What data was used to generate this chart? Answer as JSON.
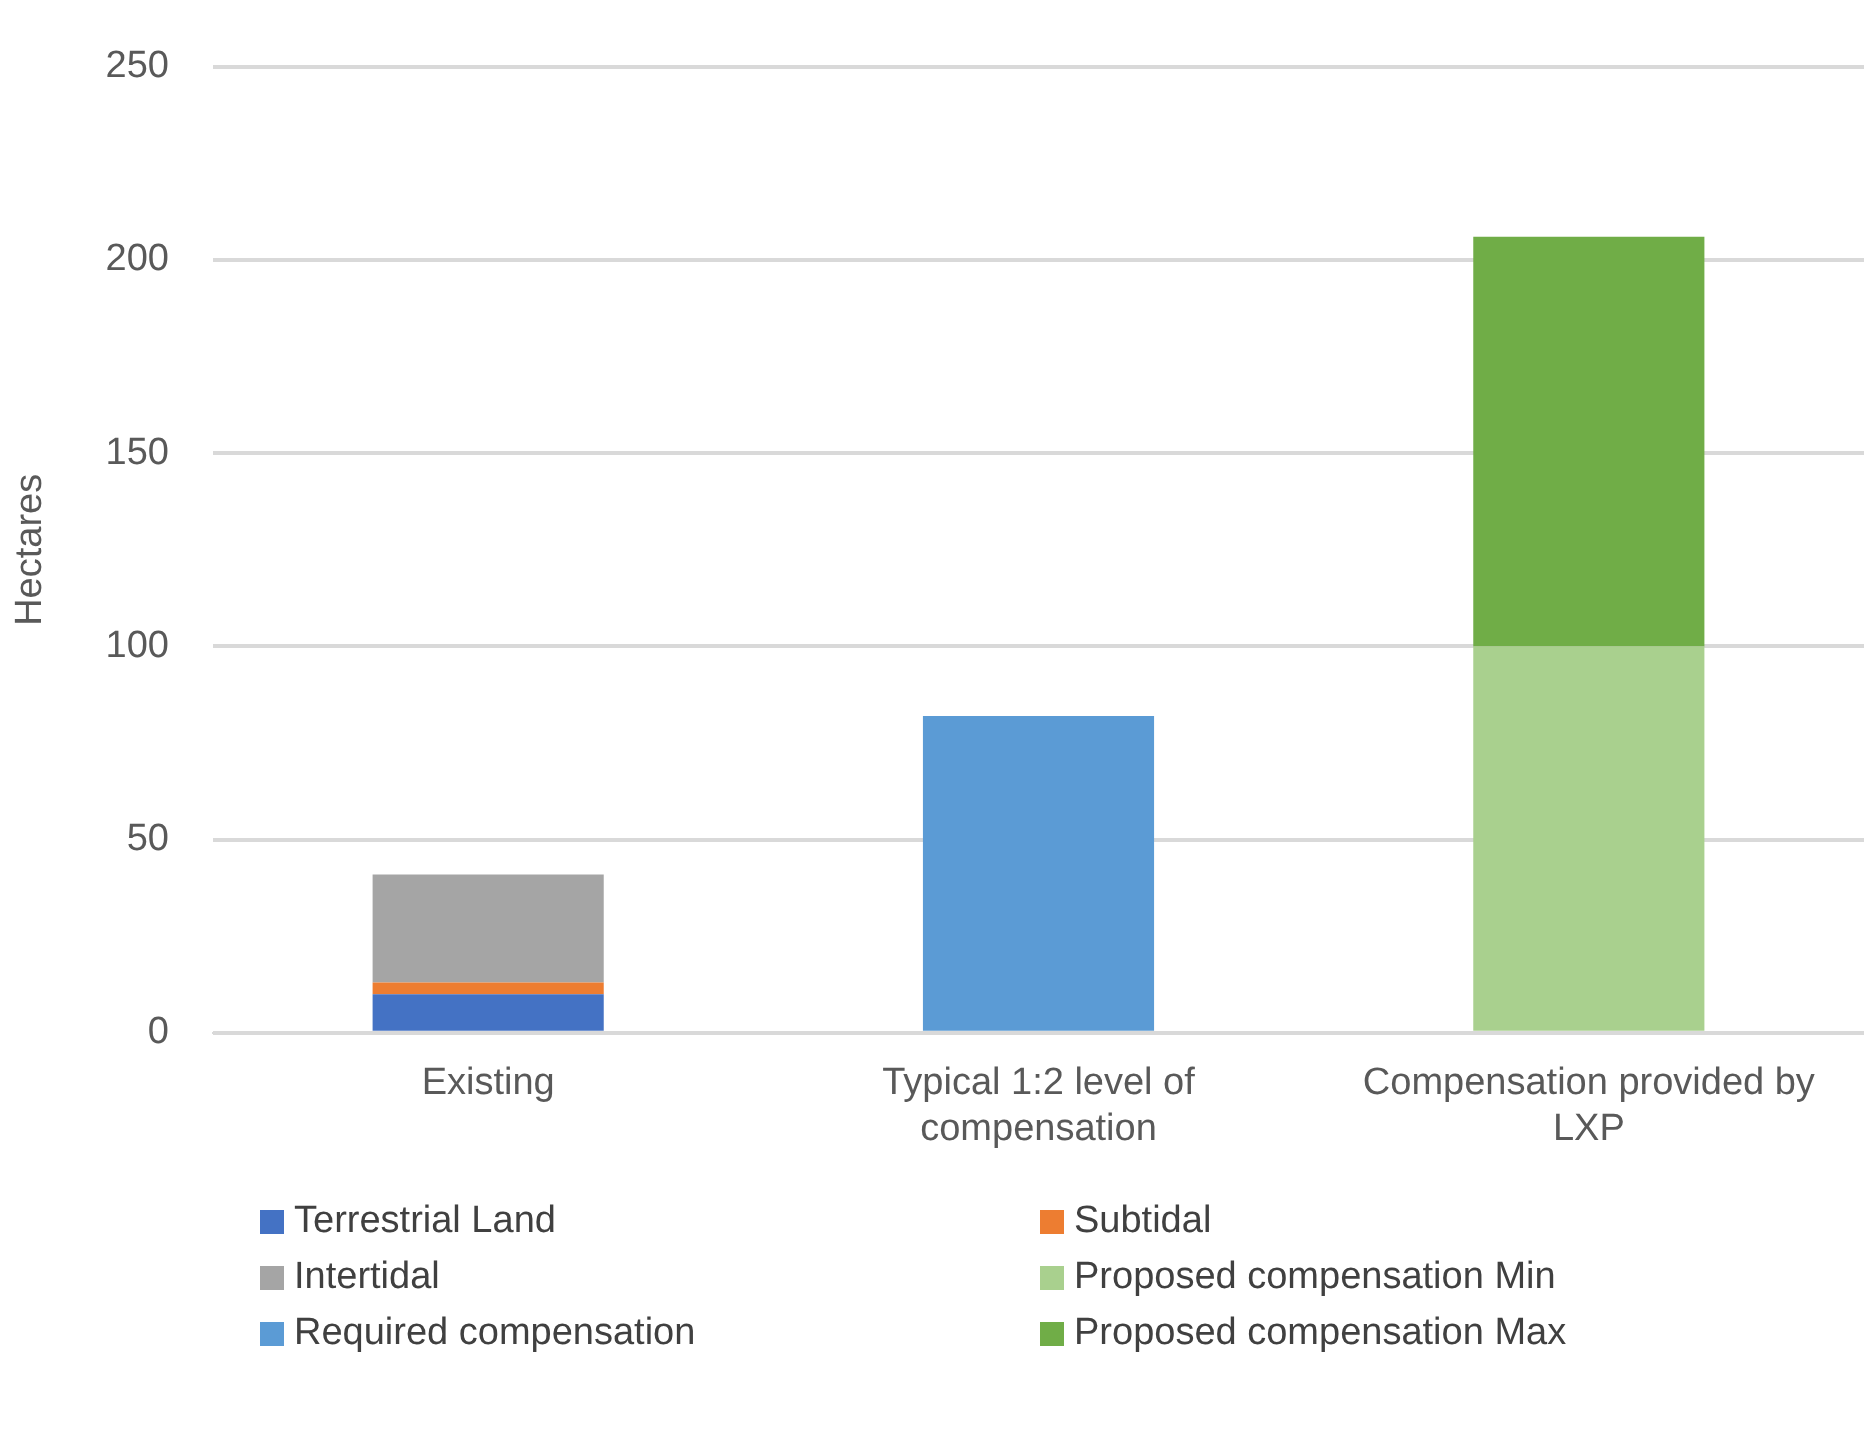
{
  "chart_data": {
    "type": "bar",
    "stacked": true,
    "ylabel": "Hectares",
    "categories": [
      "Existing",
      "Typical 1:2 level of compensation",
      "Compensation provided by LXP"
    ],
    "series": [
      {
        "name": "Terrestrial Land",
        "color": "#4472c4",
        "values": [
          10,
          null,
          null
        ]
      },
      {
        "name": "Subtidal",
        "color": "#ed7d31",
        "values": [
          3,
          null,
          null
        ]
      },
      {
        "name": "Intertidal",
        "color": "#a5a5a5",
        "values": [
          28,
          null,
          null
        ]
      },
      {
        "name": "Proposed compensation Min",
        "color": "#a9d08e",
        "values": [
          null,
          null,
          100
        ]
      },
      {
        "name": "Required compensation",
        "color": "#5b9bd5",
        "values": [
          null,
          82,
          null
        ]
      },
      {
        "name": "Proposed compensation Max",
        "color": "#70ad47",
        "values": [
          null,
          null,
          106
        ]
      }
    ],
    "ylim": [
      0,
      250
    ],
    "yticks": [
      0,
      50,
      100,
      150,
      200,
      250
    ],
    "grid": "y",
    "legend": "bottom"
  }
}
